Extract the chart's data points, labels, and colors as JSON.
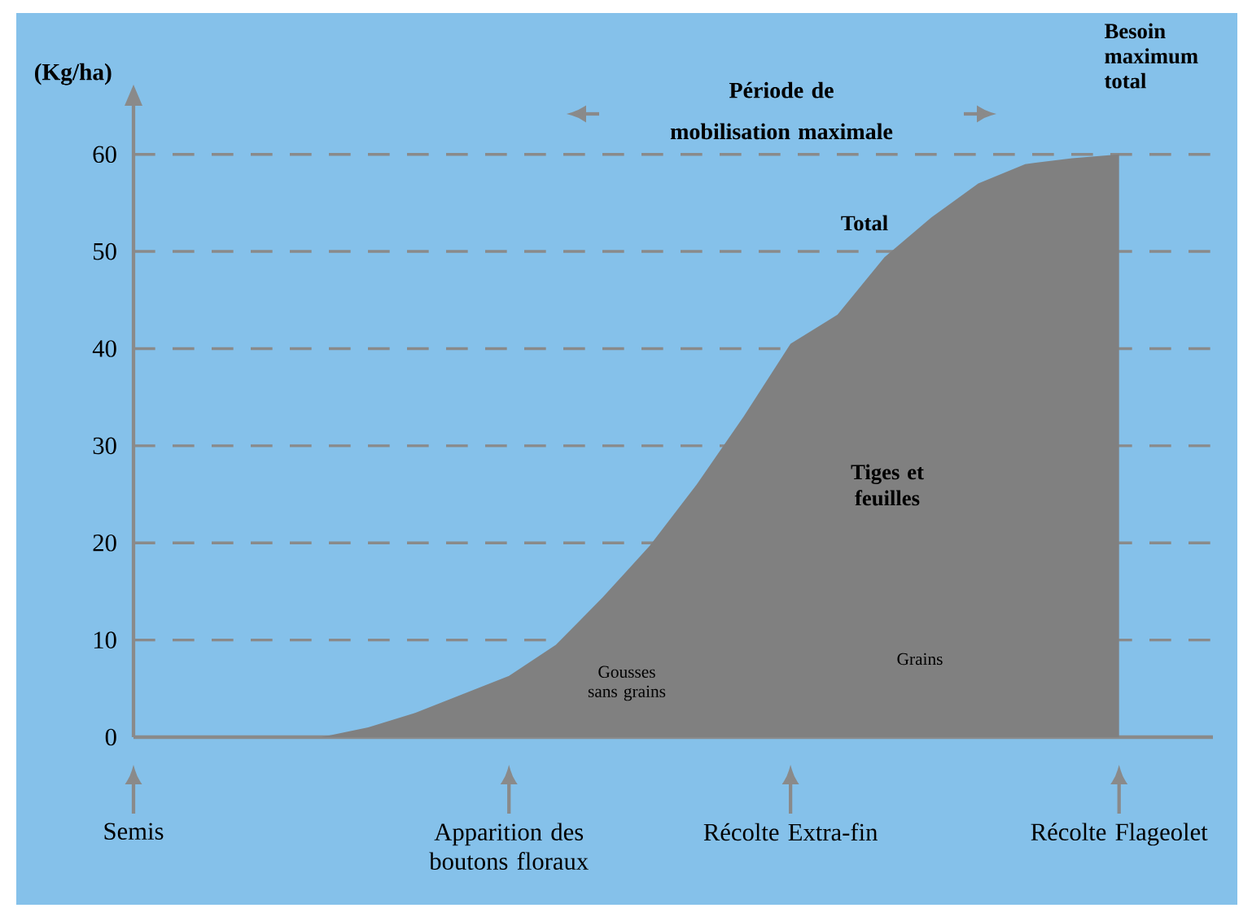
{
  "chart_data": {
    "type": "area",
    "ylabel": "(Kg/ha)",
    "categories": [
      "Semis",
      null,
      null,
      null,
      null,
      null,
      null,
      null,
      "Apparition des boutons floraux",
      null,
      null,
      null,
      null,
      null,
      "Récolte Extra-fin",
      null,
      null,
      null,
      null,
      null,
      null,
      "Récolte Flageolet",
      null,
      null
    ],
    "values": [
      0,
      0,
      0,
      0,
      0,
      1,
      2.5,
      4.4,
      6.3,
      9.5,
      14.4,
      19.7,
      26,
      33,
      40.5,
      43.5,
      49.4,
      53.5,
      57,
      59,
      59.6,
      60,
      null,
      null
    ],
    "color": "#808080",
    "ylim": [
      0,
      65
    ],
    "yticks": [
      0,
      10,
      20,
      30,
      40,
      50,
      60
    ],
    "grid": "y",
    "annotations": [
      "Période de mobilisation maximale",
      "Besoin maximum total",
      "Total",
      "Tiges et feuilles",
      "Gousses sans grains",
      "Grains"
    ]
  }
}
